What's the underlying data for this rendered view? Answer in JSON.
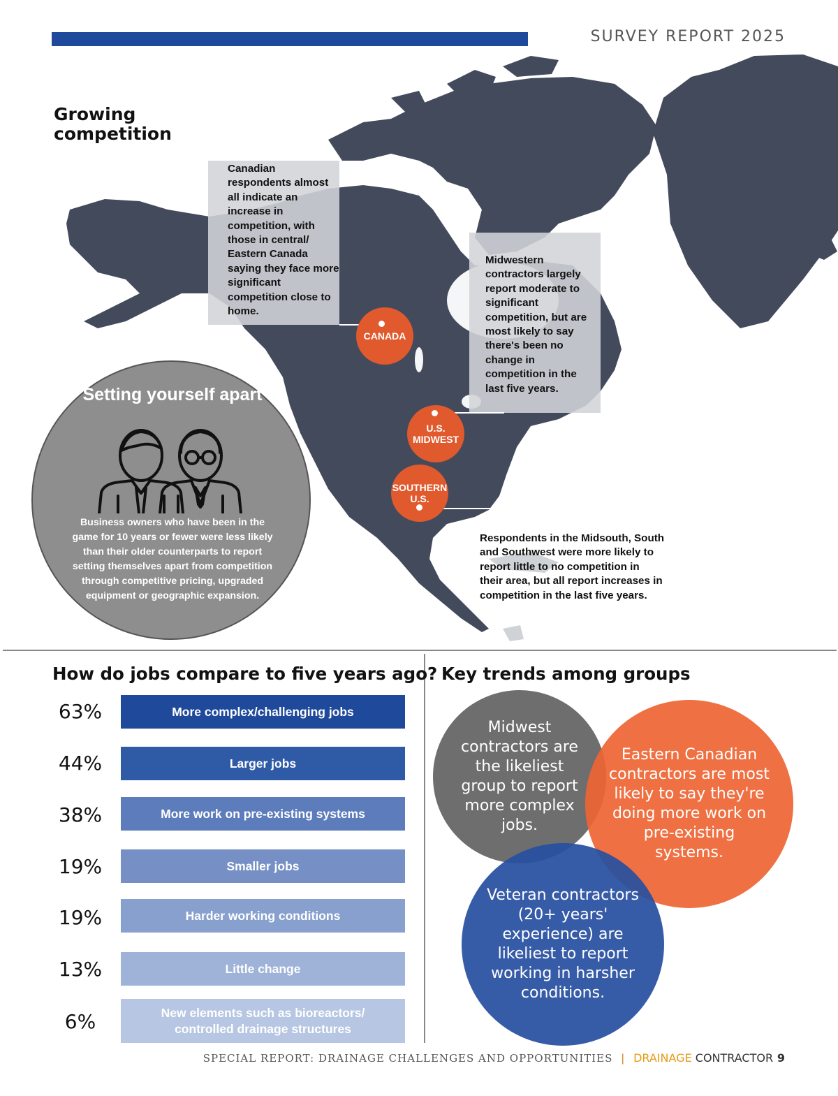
{
  "header": {
    "report_label": "SURVEY REPORT 2025"
  },
  "colors": {
    "accent_blue": "#1f4a9c",
    "map_fill": "#434a5c",
    "region_orange": "#e05a2e",
    "brand_orange": "#e79a12"
  },
  "map_section": {
    "title": "Growing competition",
    "callouts": {
      "canada": "Canadian respondents almost all indicate an increase in competition, with those in central/ Eastern Canada saying they face more significant competition close to home.",
      "midwest": "Midwestern contractors largely report moderate to significant competition, but are most likely to say there's been no change in competition in the last five years.",
      "south": "Respondents in the Midsouth, South and Southwest were more likely to report little to no competition in their area, but all report increases in competition in the last five years."
    },
    "regions": {
      "canada": "CANADA",
      "midwest_line1": "U.S.",
      "midwest_line2": "MIDWEST",
      "southern_line1": "SOUTHERN",
      "southern_line2": "U.S."
    }
  },
  "setting_apart": {
    "title": "Setting yourself apart",
    "icon": "business-people-icon",
    "text": "Business owners who have been in the game for 10 years or fewer were less likely than their older counterparts to report setting themselves apart from competition through competitive pricing, upgraded equipment or geographic expansion."
  },
  "jobs": {
    "title": "How do jobs compare to five years ago?",
    "rows": [
      {
        "pct": "63%",
        "label": "More complex/challenging jobs",
        "color": "#1f4a9c"
      },
      {
        "pct": "44%",
        "label": "Larger jobs",
        "color": "#2f5aa6"
      },
      {
        "pct": "38%",
        "label": "More work on pre-existing systems",
        "color": "#5c7cbb"
      },
      {
        "pct": "19%",
        "label": "Smaller jobs",
        "color": "#7690c5"
      },
      {
        "pct": "19%",
        "label": "Harder working conditions",
        "color": "#87a0ce"
      },
      {
        "pct": "13%",
        "label": "Little change",
        "color": "#9fb2d8"
      },
      {
        "pct": "6%",
        "label": "New elements such as bioreactors/ controlled drainage structures",
        "color": "#b7c6e3"
      }
    ]
  },
  "trends": {
    "title": "Key trends among groups",
    "midwest": "Midwest contractors are the likeliest group to report more complex jobs.",
    "eastern": "Eastern Canadian contractors are most likely to say they're doing more work on pre-existing systems.",
    "veteran": "Veteran contractors (20+ years' experience) are likeliest to report working in harsher conditions."
  },
  "footer": {
    "special": "SPECIAL REPORT: DRAINAGE CHALLENGES AND OPPORTUNITIES",
    "separator": "|",
    "brand_part1": "DRAINAGE",
    "brand_part2": " CONTRACTOR",
    "page": "9"
  }
}
